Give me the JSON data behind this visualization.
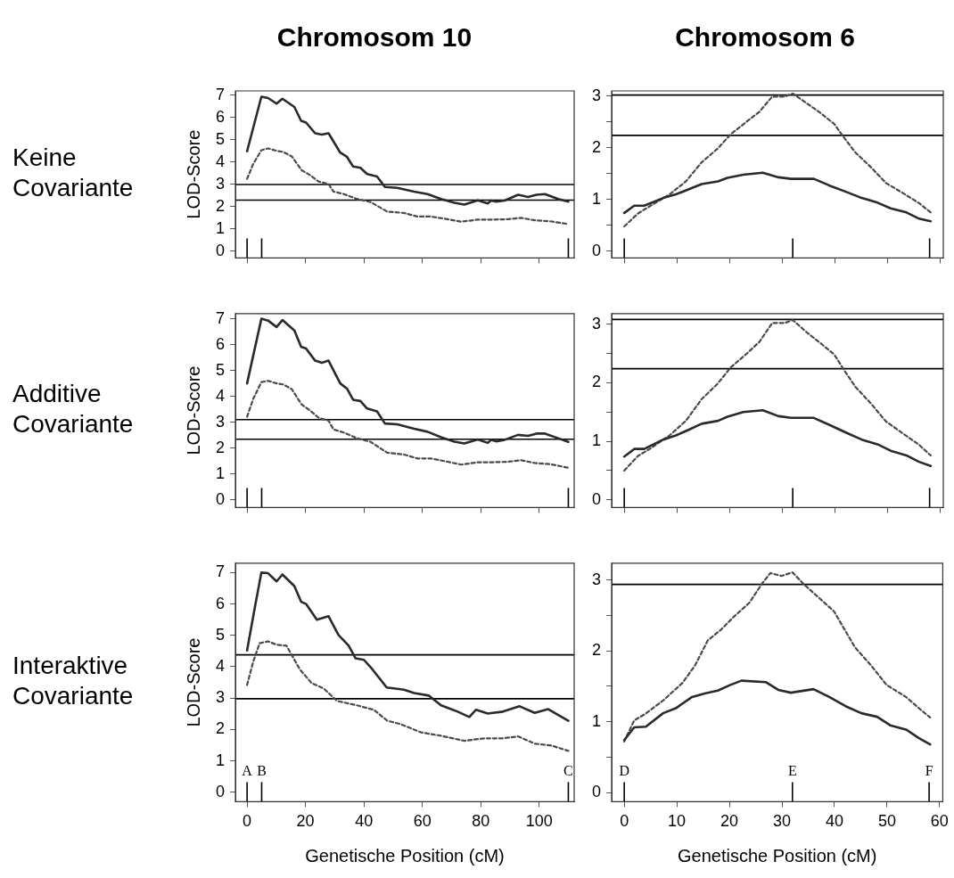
{
  "chart_data": [
    {
      "type": "line",
      "title": "Chromosom 10",
      "ylabel": "LOD-Score",
      "annotations": [
        "Keine Covariante"
      ],
      "xlim": [
        -4,
        112
      ],
      "ylim": [
        -0.3,
        7.2
      ],
      "xticks": [
        0,
        20,
        40,
        60,
        80,
        100
      ],
      "yticks": [
        0,
        1,
        2,
        3,
        4,
        5,
        6,
        7
      ],
      "tick_labels": "y",
      "legend": false,
      "marker": "none",
      "ref_lines": [
        {
          "axis": "y",
          "value": 3.0
        },
        {
          "axis": "y",
          "value": 2.3
        },
        {
          "axis": "x",
          "value": 0
        },
        {
          "axis": "x",
          "value": 5
        },
        {
          "axis": "x",
          "value": 110
        }
      ],
      "series": [
        {
          "color": "#2a2a2a",
          "line_style": "solid",
          "x": [
            0,
            4.9,
            7.2,
            10.1,
            12.1,
            16.2,
            18.5,
            20.2,
            23.3,
            25.6,
            27.9,
            31.9,
            34.2,
            36.3,
            38.8,
            41.1,
            44.5,
            47.2,
            51.4,
            57.2,
            61.8,
            66.4,
            71,
            74.4,
            79,
            82.4,
            83.6,
            85.3,
            88.2,
            92.8,
            96.2,
            99.1,
            102,
            106.5,
            110
          ],
          "values": [
            4.49,
            6.94,
            6.88,
            6.63,
            6.85,
            6.48,
            5.86,
            5.78,
            5.3,
            5.24,
            5.3,
            4.43,
            4.24,
            3.81,
            3.75,
            3.47,
            3.36,
            2.89,
            2.85,
            2.68,
            2.57,
            2.35,
            2.18,
            2.1,
            2.29,
            2.15,
            2.28,
            2.23,
            2.28,
            2.54,
            2.44,
            2.54,
            2.57,
            2.35,
            2.23
          ]
        },
        {
          "color": "#4a4a4a",
          "line_style": "dashed",
          "x": [
            0,
            2.1,
            4.9,
            7.2,
            10.1,
            12.4,
            15.3,
            18.7,
            21.6,
            24.5,
            27.9,
            29.6,
            33.1,
            37.6,
            42.3,
            48,
            53.7,
            58.3,
            62.9,
            68.7,
            73.3,
            79,
            83.6,
            89.3,
            93.9,
            98.5,
            103.6,
            110
          ],
          "values": [
            3.25,
            3.92,
            4.54,
            4.62,
            4.51,
            4.46,
            4.26,
            3.64,
            3.42,
            3.13,
            3.02,
            2.68,
            2.57,
            2.35,
            2.21,
            1.78,
            1.72,
            1.56,
            1.56,
            1.44,
            1.33,
            1.42,
            1.42,
            1.44,
            1.5,
            1.39,
            1.35,
            1.22
          ]
        }
      ]
    },
    {
      "type": "line",
      "title": "Chromosom 6",
      "xlim": [
        -2.4,
        60.6
      ],
      "ylim": [
        -0.13,
        3.1
      ],
      "xticks": [
        0,
        10,
        20,
        30,
        40,
        50,
        60
      ],
      "yticks": [
        0,
        {
          "value": 0.5,
          "label": null
        },
        1,
        {
          "value": 1.5,
          "label": null
        },
        2,
        {
          "value": 2.5,
          "label": null
        },
        3
      ],
      "tick_labels": "y",
      "legend": false,
      "marker": "none",
      "ref_lines": [
        {
          "axis": "y",
          "value": 3.02
        },
        {
          "axis": "y",
          "value": 2.24
        },
        {
          "axis": "x",
          "value": 0
        },
        {
          "axis": "x",
          "value": 32
        },
        {
          "axis": "x",
          "value": 58
        }
      ],
      "series": [
        {
          "color": "#2a2a2a",
          "line_style": "solid",
          "x": [
            0,
            1.9,
            3.8,
            7.4,
            9.8,
            12.3,
            14.7,
            17.8,
            19.6,
            22.6,
            26.3,
            29.3,
            31.7,
            36,
            39,
            42.1,
            45.1,
            48.1,
            50.6,
            53.6,
            56,
            58.2
          ],
          "values": [
            0.74,
            0.88,
            0.88,
            1.03,
            1.1,
            1.2,
            1.3,
            1.35,
            1.42,
            1.48,
            1.52,
            1.43,
            1.4,
            1.4,
            1.27,
            1.15,
            1.03,
            0.94,
            0.83,
            0.75,
            0.63,
            0.58
          ]
        },
        {
          "color": "#4a4a4a",
          "line_style": "dashed",
          "x": [
            0,
            2.6,
            5,
            8.6,
            11.7,
            14.7,
            17.8,
            20.2,
            23.3,
            25.7,
            28.1,
            30.5,
            32,
            34.8,
            37.2,
            39.9,
            41.5,
            43.9,
            46.9,
            49.7,
            53,
            56,
            58.2
          ],
          "values": [
            0.48,
            0.73,
            0.88,
            1.1,
            1.35,
            1.72,
            1.99,
            2.26,
            2.51,
            2.7,
            2.99,
            2.99,
            3.05,
            2.85,
            2.68,
            2.46,
            2.23,
            1.91,
            1.62,
            1.32,
            1.12,
            0.93,
            0.75
          ]
        }
      ]
    },
    {
      "type": "line",
      "ylabel": "LOD-Score",
      "annotations": [
        "Additive Covariante"
      ],
      "xlim": [
        -4,
        112
      ],
      "ylim": [
        -0.3,
        7.2
      ],
      "xticks": [
        0,
        20,
        40,
        60,
        80,
        100
      ],
      "yticks": [
        0,
        1,
        2,
        3,
        4,
        5,
        6,
        7
      ],
      "tick_labels": "y",
      "legend": false,
      "marker": "none",
      "ref_lines": [
        {
          "axis": "y",
          "value": 3.1
        },
        {
          "axis": "y",
          "value": 2.34
        },
        {
          "axis": "x",
          "value": 0
        },
        {
          "axis": "x",
          "value": 5
        },
        {
          "axis": "x",
          "value": 110
        }
      ],
      "series": [
        {
          "color": "#2a2a2a",
          "line_style": "solid",
          "x": [
            0,
            4.9,
            7.2,
            10.1,
            12.1,
            16.2,
            18.5,
            20.2,
            23.3,
            25.6,
            27.9,
            31.9,
            34.2,
            36.3,
            38.8,
            41.1,
            44.5,
            47.2,
            51.4,
            57.2,
            61.8,
            66.4,
            71,
            74.4,
            79,
            82.4,
            83.6,
            85.3,
            88.2,
            92.8,
            96.2,
            99.1,
            102,
            106.5,
            110
          ],
          "values": [
            4.5,
            7.0,
            6.93,
            6.68,
            6.95,
            6.55,
            5.92,
            5.85,
            5.38,
            5.3,
            5.38,
            4.5,
            4.3,
            3.87,
            3.82,
            3.53,
            3.42,
            2.95,
            2.92,
            2.75,
            2.63,
            2.42,
            2.25,
            2.18,
            2.33,
            2.2,
            2.32,
            2.26,
            2.32,
            2.51,
            2.47,
            2.56,
            2.56,
            2.38,
            2.24
          ]
        },
        {
          "color": "#4a4a4a",
          "line_style": "dashed",
          "x": [
            0,
            2.1,
            4.9,
            7.2,
            10.1,
            12.4,
            15.3,
            18.7,
            21.6,
            24.5,
            27.9,
            29.6,
            33.1,
            37.6,
            42.3,
            48,
            53.7,
            58.3,
            62.9,
            68.7,
            73.3,
            79,
            83.6,
            89.3,
            93.9,
            98.5,
            103.6,
            110
          ],
          "values": [
            3.21,
            3.9,
            4.55,
            4.6,
            4.5,
            4.46,
            4.28,
            3.68,
            3.45,
            3.17,
            3.06,
            2.72,
            2.6,
            2.38,
            2.24,
            1.82,
            1.75,
            1.6,
            1.6,
            1.47,
            1.36,
            1.45,
            1.45,
            1.47,
            1.53,
            1.42,
            1.38,
            1.24
          ]
        }
      ]
    },
    {
      "type": "line",
      "xlim": [
        -2.4,
        60.6
      ],
      "ylim": [
        -0.13,
        3.18
      ],
      "xticks": [
        0,
        10,
        20,
        30,
        40,
        50,
        60
      ],
      "yticks": [
        0,
        {
          "value": 0.5,
          "label": null
        },
        1,
        {
          "value": 1.5,
          "label": null
        },
        2,
        {
          "value": 2.5,
          "label": null
        },
        3
      ],
      "tick_labels": "y",
      "legend": false,
      "marker": "none",
      "ref_lines": [
        {
          "axis": "y",
          "value": 3.08
        },
        {
          "axis": "y",
          "value": 2.24
        },
        {
          "axis": "x",
          "value": 0
        },
        {
          "axis": "x",
          "value": 32
        },
        {
          "axis": "x",
          "value": 58
        }
      ],
      "series": [
        {
          "color": "#2a2a2a",
          "line_style": "solid",
          "x": [
            0,
            1.9,
            3.8,
            7.4,
            9.8,
            12.3,
            14.7,
            17.8,
            19.6,
            22.6,
            26.3,
            29.3,
            31.7,
            36,
            39,
            42.1,
            45.1,
            48.1,
            50.6,
            53.6,
            56,
            58.2
          ],
          "values": [
            0.74,
            0.87,
            0.87,
            1.03,
            1.1,
            1.2,
            1.3,
            1.35,
            1.42,
            1.5,
            1.53,
            1.43,
            1.4,
            1.4,
            1.28,
            1.15,
            1.03,
            0.95,
            0.84,
            0.76,
            0.65,
            0.58
          ]
        },
        {
          "color": "#4a4a4a",
          "line_style": "dashed",
          "x": [
            0,
            2.6,
            5,
            8.6,
            11.7,
            14.7,
            17.8,
            20.2,
            23.3,
            25.7,
            28.1,
            30.5,
            32,
            34.8,
            37.2,
            39.9,
            41.5,
            43.9,
            46.9,
            49.7,
            53,
            56,
            58.2
          ],
          "values": [
            0.5,
            0.75,
            0.88,
            1.1,
            1.35,
            1.72,
            1.99,
            2.26,
            2.5,
            2.7,
            3.02,
            3.02,
            3.07,
            2.85,
            2.68,
            2.48,
            2.25,
            1.93,
            1.64,
            1.34,
            1.13,
            0.94,
            0.76
          ]
        }
      ]
    },
    {
      "type": "line",
      "ylabel": "LOD-Score",
      "xlabel": "Genetische Position (cM)",
      "annotations": [
        "Interaktive Covariante"
      ],
      "xlim": [
        -4,
        112
      ],
      "ylim": [
        -0.3,
        7.3
      ],
      "xticks": [
        0,
        20,
        40,
        60,
        80,
        100
      ],
      "yticks": [
        0,
        1,
        2,
        3,
        4,
        5,
        6,
        7
      ],
      "legend": false,
      "marker": "none",
      "ref_lines": [
        {
          "axis": "y",
          "value": 4.38
        },
        {
          "axis": "y",
          "value": 2.98
        },
        {
          "axis": "x",
          "value": 0,
          "label": "A"
        },
        {
          "axis": "x",
          "value": 5,
          "label": "B"
        },
        {
          "axis": "x",
          "value": 110,
          "label": "C"
        }
      ],
      "series": [
        {
          "color": "#2a2a2a",
          "line_style": "solid",
          "x": [
            0,
            2.6,
            4.9,
            7.2,
            10.1,
            12.1,
            16.2,
            18.5,
            20.2,
            23.9,
            27.9,
            31.3,
            34.8,
            37.1,
            40,
            42.8,
            47.8,
            53.7,
            57.2,
            62.3,
            66.4,
            72.1,
            76.1,
            78.4,
            82.4,
            87.6,
            93.3,
            98.5,
            103.1,
            110
          ],
          "values": [
            4.52,
            5.86,
            7.0,
            6.98,
            6.72,
            6.94,
            6.57,
            6.07,
            6.0,
            5.5,
            5.61,
            5.01,
            4.67,
            4.27,
            4.22,
            3.93,
            3.34,
            3.27,
            3.16,
            3.08,
            2.77,
            2.57,
            2.4,
            2.63,
            2.51,
            2.57,
            2.74,
            2.53,
            2.65,
            2.28
          ]
        },
        {
          "color": "#4a4a4a",
          "line_style": "dashed",
          "x": [
            0,
            2.1,
            4.3,
            7.2,
            10.1,
            13.5,
            18.1,
            22.1,
            26.2,
            30.8,
            37.6,
            43.4,
            48,
            52.6,
            59.5,
            66.4,
            74.4,
            81.3,
            87.6,
            92.8,
            98.5,
            104.2,
            110
          ],
          "values": [
            3.42,
            4.16,
            4.75,
            4.81,
            4.7,
            4.67,
            3.91,
            3.48,
            3.31,
            2.91,
            2.77,
            2.63,
            2.28,
            2.17,
            1.91,
            1.8,
            1.64,
            1.72,
            1.72,
            1.78,
            1.55,
            1.49,
            1.32
          ]
        }
      ]
    },
    {
      "type": "line",
      "xlabel": "Genetische Position (cM)",
      "xlim": [
        -2.4,
        60.6
      ],
      "ylim": [
        -0.13,
        3.24
      ],
      "xticks": [
        0,
        10,
        20,
        30,
        40,
        50,
        60
      ],
      "yticks": [
        0,
        {
          "value": 0.5,
          "label": null
        },
        1,
        {
          "value": 1.5,
          "label": null
        },
        2,
        {
          "value": 2.5,
          "label": null
        },
        3
      ],
      "legend": false,
      "marker": "none",
      "ref_lines": [
        {
          "axis": "y",
          "value": 2.94
        },
        {
          "axis": "x",
          "value": 0,
          "label": "D"
        },
        {
          "axis": "x",
          "value": 32,
          "label": "E"
        },
        {
          "axis": "x",
          "value": 58,
          "label": "F"
        }
      ],
      "series": [
        {
          "color": "#2a2a2a",
          "line_style": "solid",
          "x": [
            0,
            1.9,
            4.1,
            7.4,
            9.8,
            12.9,
            15.3,
            17.8,
            20.2,
            22.3,
            26.9,
            29.3,
            31.7,
            36,
            39,
            42.1,
            45.1,
            48.1,
            50.6,
            53.6,
            56,
            58.2
          ],
          "values": [
            0.74,
            0.92,
            0.93,
            1.12,
            1.19,
            1.35,
            1.4,
            1.44,
            1.52,
            1.58,
            1.56,
            1.45,
            1.41,
            1.46,
            1.35,
            1.22,
            1.12,
            1.07,
            0.95,
            0.89,
            0.77,
            0.68
          ]
        },
        {
          "color": "#4a4a4a",
          "line_style": "dashed",
          "x": [
            0,
            1.9,
            3.8,
            7.4,
            11.1,
            13.5,
            15.9,
            18.4,
            20.8,
            23.8,
            26.3,
            27.8,
            29.9,
            32,
            34.2,
            36.6,
            39.9,
            43.9,
            46.9,
            49.9,
            53.6,
            56.7,
            58.2
          ],
          "values": [
            0.72,
            1.02,
            1.1,
            1.3,
            1.55,
            1.8,
            2.15,
            2.3,
            2.48,
            2.68,
            2.96,
            3.1,
            3.06,
            3.11,
            2.94,
            2.78,
            2.56,
            2.05,
            1.8,
            1.52,
            1.35,
            1.15,
            1.06
          ]
        }
      ]
    }
  ]
}
